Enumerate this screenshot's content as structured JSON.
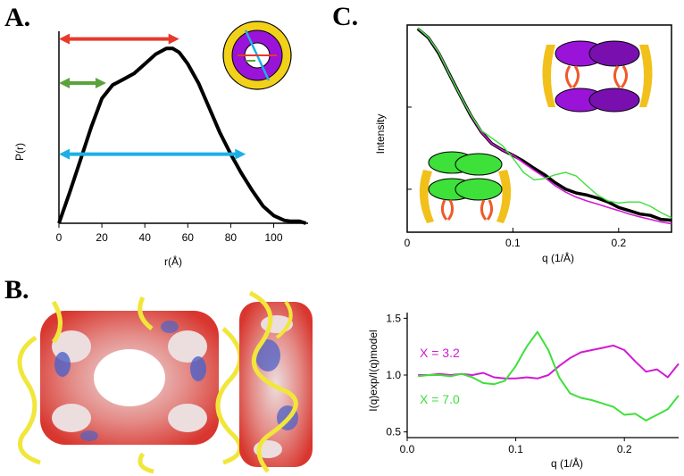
{
  "panel_labels": {
    "a": "A.",
    "b": "B.",
    "c": "C."
  },
  "colors": {
    "black": "#000000",
    "red": "#e8392a",
    "green": "#5aa33a",
    "cyan": "#1ab0e6",
    "yellow": "#f2d11a",
    "purple": "#9a13d8",
    "magenta": "#d21ad2",
    "lime": "#3ee03a",
    "helix": "#f1e63a",
    "surface_red": "#d8362e",
    "surface_blue": "#4d62c8",
    "surface_white": "#ecdedf"
  },
  "icons": {
    "ring_diagram": "yellow-ring-with-purple-annulus-icon",
    "tetramer_purple": "purple-tetramer-cartoon-icon",
    "tetramer_green": "green-tetramer-cartoon-icon",
    "structure_front": "electrostatic-surface-front-view",
    "structure_side": "electrostatic-surface-side-view"
  },
  "chart_data": [
    {
      "id": "A",
      "type": "line",
      "xlabel": "r(Å)",
      "ylabel": "P(r)",
      "xlim": [
        0,
        116
      ],
      "ylim": [
        0,
        1
      ],
      "xticks": [
        "0",
        "20",
        "40",
        "60",
        "80",
        "100"
      ],
      "xtick_values": [
        0,
        20,
        40,
        60,
        80,
        100
      ],
      "series": [
        {
          "color": "#000000",
          "x": [
            0,
            5,
            10,
            15,
            20,
            25,
            30,
            35,
            40,
            45,
            50,
            53,
            56,
            60,
            65,
            70,
            75,
            80,
            85,
            90,
            95,
            100,
            105,
            108,
            112,
            115
          ],
          "y": [
            0,
            0.16,
            0.33,
            0.5,
            0.65,
            0.72,
            0.75,
            0.78,
            0.83,
            0.88,
            0.91,
            0.91,
            0.89,
            0.83,
            0.73,
            0.6,
            0.47,
            0.36,
            0.26,
            0.17,
            0.09,
            0.04,
            0.015,
            0.01,
            0.01,
            0.0
          ]
        }
      ],
      "annotations": [
        {
          "kind": "double-arrow",
          "color": "red",
          "x_from": 0,
          "x_to": 56,
          "y": 0.96
        },
        {
          "kind": "double-arrow",
          "color": "green",
          "x_from": 0,
          "x_to": 22,
          "y": 0.73
        },
        {
          "kind": "double-arrow",
          "color": "cyan",
          "x_from": 0,
          "x_to": 87,
          "y": 0.36
        }
      ]
    },
    {
      "id": "C-top",
      "type": "line",
      "xlabel": "q (1/Å)",
      "ylabel": "Intensity",
      "xlim": [
        0,
        0.25
      ],
      "log_y": true,
      "ylim": [
        0.3,
        100
      ],
      "xticks": [
        "0",
        "0.1",
        "0.2"
      ],
      "xtick_values": [
        0,
        0.1,
        0.2
      ],
      "series": [
        {
          "color": "#000000",
          "x": [
            0.01,
            0.02,
            0.03,
            0.04,
            0.05,
            0.06,
            0.07,
            0.08,
            0.09,
            0.1,
            0.11,
            0.12,
            0.13,
            0.14,
            0.15,
            0.16,
            0.17,
            0.18,
            0.19,
            0.2,
            0.21,
            0.22,
            0.23,
            0.24,
            0.25
          ],
          "y": [
            90,
            70,
            45,
            25,
            14,
            8.0,
            5.0,
            3.6,
            3.0,
            2.6,
            2.2,
            1.8,
            1.5,
            1.2,
            1.0,
            0.9,
            0.85,
            0.78,
            0.7,
            0.6,
            0.55,
            0.5,
            0.48,
            0.43,
            0.42
          ]
        },
        {
          "color": "#d21ad2",
          "x": [
            0.01,
            0.02,
            0.03,
            0.04,
            0.05,
            0.06,
            0.07,
            0.08,
            0.09,
            0.1,
            0.11,
            0.12,
            0.13,
            0.14,
            0.15,
            0.16,
            0.17,
            0.18,
            0.19,
            0.2,
            0.21,
            0.22,
            0.23,
            0.24,
            0.25
          ],
          "y": [
            92,
            71,
            46,
            25,
            14,
            8.1,
            5.0,
            3.6,
            3.0,
            2.6,
            2.1,
            1.7,
            1.4,
            1.1,
            0.92,
            0.8,
            0.72,
            0.66,
            0.6,
            0.55,
            0.5,
            0.46,
            0.43,
            0.4,
            0.38
          ]
        },
        {
          "color": "#3ee03a",
          "x": [
            0.01,
            0.02,
            0.03,
            0.04,
            0.05,
            0.06,
            0.07,
            0.08,
            0.09,
            0.1,
            0.11,
            0.12,
            0.13,
            0.14,
            0.15,
            0.16,
            0.17,
            0.18,
            0.19,
            0.2,
            0.21,
            0.22,
            0.23,
            0.24,
            0.25
          ],
          "y": [
            92,
            71,
            46,
            25,
            14,
            8.1,
            5.2,
            4.2,
            3.4,
            2.4,
            1.6,
            1.3,
            1.35,
            1.5,
            1.6,
            1.45,
            1.1,
            0.85,
            0.72,
            0.68,
            0.7,
            0.7,
            0.62,
            0.52,
            0.45
          ]
        }
      ]
    },
    {
      "id": "C-bottom",
      "type": "line",
      "xlabel": "q (1/Å)",
      "ylabel": "I(q)exp/I(q)model",
      "xlim": [
        0,
        0.25
      ],
      "ylim": [
        0.45,
        1.55
      ],
      "xticks": [
        "0.0",
        "0.1",
        "0.2"
      ],
      "xtick_values": [
        0,
        0.1,
        0.2
      ],
      "yticks": [
        "0.5",
        "1.0",
        "1.5"
      ],
      "ytick_values": [
        0.5,
        1.0,
        1.5
      ],
      "series": [
        {
          "name": "X = 3.2",
          "color": "#d21ad2",
          "x": [
            0.01,
            0.02,
            0.03,
            0.04,
            0.05,
            0.06,
            0.07,
            0.08,
            0.09,
            0.1,
            0.11,
            0.12,
            0.13,
            0.14,
            0.15,
            0.16,
            0.17,
            0.18,
            0.19,
            0.2,
            0.21,
            0.22,
            0.23,
            0.24,
            0.25
          ],
          "y": [
            1.0,
            1.0,
            1.01,
            1.0,
            1.01,
            1.0,
            1.02,
            0.98,
            0.97,
            0.97,
            0.98,
            0.97,
            1.0,
            1.08,
            1.15,
            1.2,
            1.22,
            1.24,
            1.26,
            1.22,
            1.12,
            1.03,
            1.05,
            0.98,
            1.1
          ]
        },
        {
          "name": "X = 7.0",
          "color": "#3ee03a",
          "x": [
            0.01,
            0.02,
            0.03,
            0.04,
            0.05,
            0.06,
            0.07,
            0.08,
            0.09,
            0.1,
            0.11,
            0.12,
            0.13,
            0.14,
            0.15,
            0.16,
            0.17,
            0.18,
            0.19,
            0.2,
            0.21,
            0.22,
            0.23,
            0.24,
            0.25
          ],
          "y": [
            0.99,
            1.0,
            1.0,
            0.99,
            1.01,
            0.98,
            0.93,
            0.92,
            0.95,
            1.08,
            1.25,
            1.38,
            1.22,
            0.98,
            0.84,
            0.8,
            0.78,
            0.75,
            0.72,
            0.65,
            0.66,
            0.6,
            0.65,
            0.7,
            0.82
          ]
        }
      ]
    }
  ]
}
